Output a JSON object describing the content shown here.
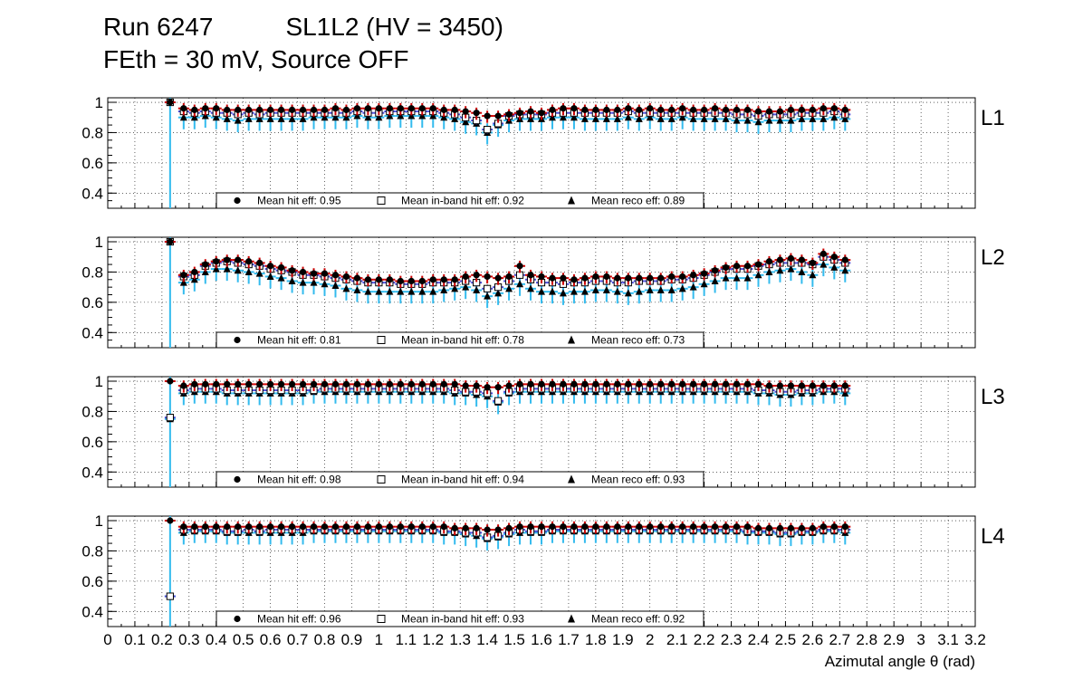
{
  "header": {
    "run": "Run 6247",
    "chamber": "SL1L2 (HV = 3450)",
    "condition": "FEth = 30 mV, Source OFF"
  },
  "chart_data": {
    "type": "scatter",
    "xlabel": "Azimutal angle θ (rad)",
    "xlim": [
      0,
      3.2
    ],
    "ylim": [
      0.3,
      1.03
    ],
    "x_ticks": [
      "0",
      "0.1",
      "0.2",
      "0.3",
      "0.4",
      "0.5",
      "0.6",
      "0.7",
      "0.8",
      "0.9",
      "1",
      "1.1",
      "1.2",
      "1.3",
      "1.4",
      "1.5",
      "1.6",
      "1.7",
      "1.8",
      "1.9",
      "2",
      "2.1",
      "2.2",
      "2.3",
      "2.4",
      "2.5",
      "2.6",
      "2.7",
      "2.8",
      "2.9",
      "3",
      "3.1",
      "3.2"
    ],
    "y_ticks": [
      "0.4",
      "0.6",
      "0.8",
      "1"
    ],
    "colors": {
      "hit": "#cc0000",
      "inband": "#4b4bd6",
      "reco": "#33bbee",
      "marker": "#000000"
    },
    "panels": [
      {
        "label": "L1",
        "legend": [
          "Mean hit  eff: 0.95",
          "Mean in-band hit eff: 0.92",
          "Mean reco eff: 0.89"
        ],
        "first_bin": {
          "x": 0.23,
          "hit": 1.0,
          "inband": 1.0,
          "reco": 1.0
        },
        "x": [
          0.28,
          0.32,
          0.36,
          0.4,
          0.44,
          0.48,
          0.52,
          0.56,
          0.6,
          0.64,
          0.68,
          0.72,
          0.76,
          0.8,
          0.84,
          0.88,
          0.92,
          0.96,
          1.0,
          1.04,
          1.08,
          1.12,
          1.16,
          1.2,
          1.24,
          1.28,
          1.32,
          1.36,
          1.4,
          1.44,
          1.48,
          1.52,
          1.56,
          1.6,
          1.64,
          1.68,
          1.72,
          1.76,
          1.8,
          1.84,
          1.88,
          1.92,
          1.96,
          2.0,
          2.04,
          2.08,
          2.12,
          2.16,
          2.2,
          2.24,
          2.28,
          2.32,
          2.36,
          2.4,
          2.44,
          2.48,
          2.52,
          2.56,
          2.6,
          2.64,
          2.68,
          2.72
        ],
        "hit": [
          0.96,
          0.95,
          0.96,
          0.96,
          0.95,
          0.95,
          0.95,
          0.95,
          0.95,
          0.95,
          0.95,
          0.95,
          0.95,
          0.95,
          0.96,
          0.95,
          0.96,
          0.96,
          0.96,
          0.96,
          0.96,
          0.96,
          0.96,
          0.96,
          0.95,
          0.95,
          0.94,
          0.93,
          0.91,
          0.91,
          0.92,
          0.93,
          0.94,
          0.93,
          0.95,
          0.96,
          0.96,
          0.95,
          0.95,
          0.95,
          0.95,
          0.96,
          0.95,
          0.96,
          0.95,
          0.95,
          0.96,
          0.95,
          0.95,
          0.96,
          0.95,
          0.95,
          0.95,
          0.94,
          0.94,
          0.94,
          0.95,
          0.95,
          0.95,
          0.96,
          0.96,
          0.95
        ],
        "inband": [
          0.94,
          0.93,
          0.94,
          0.93,
          0.93,
          0.92,
          0.93,
          0.92,
          0.93,
          0.93,
          0.93,
          0.93,
          0.93,
          0.93,
          0.93,
          0.93,
          0.94,
          0.93,
          0.93,
          0.94,
          0.94,
          0.94,
          0.94,
          0.94,
          0.93,
          0.92,
          0.9,
          0.88,
          0.82,
          0.86,
          0.91,
          0.92,
          0.92,
          0.92,
          0.93,
          0.93,
          0.93,
          0.93,
          0.93,
          0.93,
          0.93,
          0.94,
          0.93,
          0.93,
          0.93,
          0.93,
          0.93,
          0.93,
          0.93,
          0.93,
          0.93,
          0.92,
          0.92,
          0.91,
          0.92,
          0.92,
          0.92,
          0.93,
          0.93,
          0.93,
          0.94,
          0.92
        ],
        "reco": [
          0.9,
          0.9,
          0.91,
          0.9,
          0.89,
          0.88,
          0.89,
          0.89,
          0.89,
          0.89,
          0.89,
          0.89,
          0.9,
          0.9,
          0.9,
          0.9,
          0.91,
          0.9,
          0.9,
          0.91,
          0.91,
          0.91,
          0.91,
          0.91,
          0.9,
          0.89,
          0.87,
          0.86,
          0.8,
          0.85,
          0.88,
          0.89,
          0.89,
          0.89,
          0.9,
          0.9,
          0.9,
          0.89,
          0.89,
          0.89,
          0.89,
          0.9,
          0.89,
          0.9,
          0.89,
          0.89,
          0.9,
          0.89,
          0.89,
          0.89,
          0.89,
          0.88,
          0.88,
          0.87,
          0.88,
          0.88,
          0.88,
          0.89,
          0.89,
          0.89,
          0.9,
          0.89
        ]
      },
      {
        "label": "L2",
        "legend": [
          "Mean hit  eff: 0.81",
          "Mean in-band hit eff: 0.78",
          "Mean reco eff: 0.73"
        ],
        "first_bin": {
          "x": 0.23,
          "hit": 1.0,
          "inband": 1.0,
          "reco": 1.0
        },
        "x": [
          0.28,
          0.32,
          0.36,
          0.4,
          0.44,
          0.48,
          0.52,
          0.56,
          0.6,
          0.64,
          0.68,
          0.72,
          0.76,
          0.8,
          0.84,
          0.88,
          0.92,
          0.96,
          1.0,
          1.04,
          1.08,
          1.12,
          1.16,
          1.2,
          1.24,
          1.28,
          1.32,
          1.36,
          1.4,
          1.44,
          1.48,
          1.52,
          1.56,
          1.6,
          1.64,
          1.68,
          1.72,
          1.76,
          1.8,
          1.84,
          1.88,
          1.92,
          1.96,
          2.0,
          2.04,
          2.08,
          2.12,
          2.16,
          2.2,
          2.24,
          2.28,
          2.32,
          2.36,
          2.4,
          2.44,
          2.48,
          2.52,
          2.56,
          2.6,
          2.64,
          2.68,
          2.72
        ],
        "hit": [
          0.78,
          0.8,
          0.85,
          0.87,
          0.88,
          0.88,
          0.87,
          0.86,
          0.84,
          0.83,
          0.81,
          0.8,
          0.79,
          0.79,
          0.78,
          0.77,
          0.76,
          0.75,
          0.75,
          0.75,
          0.74,
          0.74,
          0.74,
          0.75,
          0.75,
          0.75,
          0.77,
          0.78,
          0.77,
          0.76,
          0.77,
          0.84,
          0.78,
          0.77,
          0.76,
          0.76,
          0.75,
          0.76,
          0.77,
          0.77,
          0.76,
          0.76,
          0.76,
          0.76,
          0.76,
          0.77,
          0.77,
          0.78,
          0.79,
          0.81,
          0.83,
          0.84,
          0.84,
          0.85,
          0.87,
          0.88,
          0.89,
          0.88,
          0.86,
          0.92,
          0.9,
          0.88
        ],
        "inband": [
          0.77,
          0.78,
          0.84,
          0.86,
          0.87,
          0.86,
          0.85,
          0.84,
          0.82,
          0.81,
          0.8,
          0.78,
          0.78,
          0.77,
          0.76,
          0.75,
          0.74,
          0.73,
          0.73,
          0.73,
          0.72,
          0.72,
          0.72,
          0.73,
          0.73,
          0.73,
          0.74,
          0.73,
          0.69,
          0.7,
          0.74,
          0.78,
          0.75,
          0.73,
          0.73,
          0.72,
          0.73,
          0.73,
          0.74,
          0.74,
          0.73,
          0.73,
          0.74,
          0.74,
          0.74,
          0.75,
          0.75,
          0.76,
          0.78,
          0.8,
          0.82,
          0.82,
          0.82,
          0.84,
          0.85,
          0.86,
          0.86,
          0.86,
          0.85,
          0.9,
          0.88,
          0.86
        ],
        "reco": [
          0.73,
          0.75,
          0.8,
          0.82,
          0.82,
          0.81,
          0.8,
          0.79,
          0.77,
          0.76,
          0.74,
          0.73,
          0.73,
          0.72,
          0.71,
          0.69,
          0.68,
          0.67,
          0.67,
          0.67,
          0.67,
          0.67,
          0.67,
          0.67,
          0.68,
          0.69,
          0.7,
          0.68,
          0.64,
          0.66,
          0.69,
          0.72,
          0.69,
          0.67,
          0.67,
          0.66,
          0.67,
          0.67,
          0.68,
          0.68,
          0.67,
          0.66,
          0.67,
          0.68,
          0.68,
          0.68,
          0.69,
          0.7,
          0.72,
          0.74,
          0.76,
          0.76,
          0.76,
          0.78,
          0.8,
          0.81,
          0.82,
          0.8,
          0.78,
          0.85,
          0.83,
          0.81
        ]
      },
      {
        "label": "L3",
        "legend": [
          "Mean hit  eff: 0.98",
          "Mean in-band hit eff: 0.94",
          "Mean reco eff: 0.93"
        ],
        "first_bin": {
          "x": 0.23,
          "hit": 1.0,
          "inband": 0.76,
          "reco": 0.75
        },
        "x": [
          0.28,
          0.32,
          0.36,
          0.4,
          0.44,
          0.48,
          0.52,
          0.56,
          0.6,
          0.64,
          0.68,
          0.72,
          0.76,
          0.8,
          0.84,
          0.88,
          0.92,
          0.96,
          1.0,
          1.04,
          1.08,
          1.12,
          1.16,
          1.2,
          1.24,
          1.28,
          1.32,
          1.36,
          1.4,
          1.44,
          1.48,
          1.52,
          1.56,
          1.6,
          1.64,
          1.68,
          1.72,
          1.76,
          1.8,
          1.84,
          1.88,
          1.92,
          1.96,
          2.0,
          2.04,
          2.08,
          2.12,
          2.16,
          2.2,
          2.24,
          2.28,
          2.32,
          2.36,
          2.4,
          2.44,
          2.48,
          2.52,
          2.56,
          2.6,
          2.64,
          2.68,
          2.72
        ],
        "hit": [
          0.97,
          0.98,
          0.98,
          0.98,
          0.98,
          0.98,
          0.98,
          0.98,
          0.98,
          0.98,
          0.98,
          0.98,
          0.98,
          0.98,
          0.98,
          0.98,
          0.98,
          0.98,
          0.98,
          0.98,
          0.98,
          0.98,
          0.98,
          0.98,
          0.98,
          0.98,
          0.97,
          0.97,
          0.96,
          0.96,
          0.97,
          0.98,
          0.98,
          0.98,
          0.98,
          0.98,
          0.98,
          0.98,
          0.98,
          0.98,
          0.98,
          0.98,
          0.98,
          0.98,
          0.98,
          0.98,
          0.98,
          0.98,
          0.98,
          0.98,
          0.98,
          0.98,
          0.98,
          0.98,
          0.97,
          0.97,
          0.97,
          0.97,
          0.97,
          0.97,
          0.97,
          0.97
        ],
        "inband": [
          0.94,
          0.95,
          0.95,
          0.95,
          0.94,
          0.94,
          0.94,
          0.94,
          0.94,
          0.94,
          0.94,
          0.94,
          0.94,
          0.95,
          0.95,
          0.95,
          0.95,
          0.95,
          0.95,
          0.95,
          0.95,
          0.95,
          0.95,
          0.95,
          0.95,
          0.94,
          0.93,
          0.93,
          0.92,
          0.87,
          0.93,
          0.95,
          0.95,
          0.95,
          0.95,
          0.95,
          0.95,
          0.95,
          0.95,
          0.95,
          0.95,
          0.95,
          0.95,
          0.95,
          0.95,
          0.95,
          0.95,
          0.95,
          0.95,
          0.95,
          0.95,
          0.95,
          0.95,
          0.94,
          0.94,
          0.93,
          0.93,
          0.94,
          0.94,
          0.95,
          0.95,
          0.95
        ],
        "reco": [
          0.92,
          0.93,
          0.93,
          0.93,
          0.92,
          0.92,
          0.92,
          0.92,
          0.92,
          0.92,
          0.92,
          0.92,
          0.93,
          0.93,
          0.93,
          0.93,
          0.93,
          0.93,
          0.93,
          0.93,
          0.93,
          0.93,
          0.93,
          0.93,
          0.93,
          0.92,
          0.92,
          0.91,
          0.9,
          0.86,
          0.92,
          0.93,
          0.93,
          0.93,
          0.93,
          0.93,
          0.93,
          0.93,
          0.93,
          0.93,
          0.93,
          0.93,
          0.93,
          0.93,
          0.93,
          0.93,
          0.93,
          0.93,
          0.93,
          0.93,
          0.93,
          0.93,
          0.93,
          0.92,
          0.92,
          0.91,
          0.91,
          0.92,
          0.92,
          0.93,
          0.93,
          0.92
        ]
      },
      {
        "label": "L4",
        "legend": [
          "Mean hit  eff: 0.96",
          "Mean in-band hit eff: 0.93",
          "Mean reco eff: 0.92"
        ],
        "first_bin": {
          "x": 0.23,
          "hit": 1.0,
          "inband": 0.5,
          "reco": 0.5
        },
        "x": [
          0.28,
          0.32,
          0.36,
          0.4,
          0.44,
          0.48,
          0.52,
          0.56,
          0.6,
          0.64,
          0.68,
          0.72,
          0.76,
          0.8,
          0.84,
          0.88,
          0.92,
          0.96,
          1.0,
          1.04,
          1.08,
          1.12,
          1.16,
          1.2,
          1.24,
          1.28,
          1.32,
          1.36,
          1.4,
          1.44,
          1.48,
          1.52,
          1.56,
          1.6,
          1.64,
          1.68,
          1.72,
          1.76,
          1.8,
          1.84,
          1.88,
          1.92,
          1.96,
          2.0,
          2.04,
          2.08,
          2.12,
          2.16,
          2.2,
          2.24,
          2.28,
          2.32,
          2.36,
          2.4,
          2.44,
          2.48,
          2.52,
          2.56,
          2.6,
          2.64,
          2.68,
          2.72
        ],
        "hit": [
          0.96,
          0.96,
          0.96,
          0.96,
          0.96,
          0.96,
          0.96,
          0.96,
          0.96,
          0.96,
          0.96,
          0.96,
          0.96,
          0.96,
          0.96,
          0.96,
          0.96,
          0.96,
          0.96,
          0.96,
          0.96,
          0.96,
          0.96,
          0.96,
          0.96,
          0.95,
          0.95,
          0.95,
          0.94,
          0.94,
          0.95,
          0.96,
          0.96,
          0.96,
          0.96,
          0.96,
          0.96,
          0.96,
          0.96,
          0.96,
          0.96,
          0.96,
          0.96,
          0.96,
          0.96,
          0.96,
          0.96,
          0.96,
          0.96,
          0.96,
          0.96,
          0.96,
          0.96,
          0.95,
          0.95,
          0.95,
          0.95,
          0.95,
          0.95,
          0.96,
          0.96,
          0.96
        ],
        "inband": [
          0.94,
          0.94,
          0.94,
          0.94,
          0.93,
          0.93,
          0.94,
          0.93,
          0.94,
          0.94,
          0.94,
          0.94,
          0.94,
          0.94,
          0.94,
          0.94,
          0.94,
          0.94,
          0.94,
          0.94,
          0.94,
          0.94,
          0.94,
          0.94,
          0.93,
          0.93,
          0.92,
          0.92,
          0.89,
          0.9,
          0.92,
          0.94,
          0.93,
          0.93,
          0.94,
          0.94,
          0.94,
          0.94,
          0.94,
          0.94,
          0.94,
          0.94,
          0.94,
          0.94,
          0.94,
          0.94,
          0.94,
          0.94,
          0.94,
          0.94,
          0.94,
          0.94,
          0.93,
          0.93,
          0.93,
          0.92,
          0.92,
          0.93,
          0.93,
          0.94,
          0.94,
          0.94
        ],
        "reco": [
          0.92,
          0.93,
          0.93,
          0.93,
          0.92,
          0.92,
          0.92,
          0.92,
          0.92,
          0.92,
          0.92,
          0.92,
          0.93,
          0.93,
          0.93,
          0.93,
          0.93,
          0.93,
          0.93,
          0.93,
          0.93,
          0.93,
          0.93,
          0.93,
          0.92,
          0.92,
          0.91,
          0.9,
          0.88,
          0.89,
          0.91,
          0.92,
          0.92,
          0.92,
          0.93,
          0.93,
          0.93,
          0.93,
          0.93,
          0.93,
          0.93,
          0.93,
          0.93,
          0.93,
          0.93,
          0.93,
          0.93,
          0.93,
          0.93,
          0.93,
          0.93,
          0.93,
          0.92,
          0.92,
          0.92,
          0.91,
          0.91,
          0.92,
          0.92,
          0.93,
          0.93,
          0.92
        ]
      }
    ]
  }
}
